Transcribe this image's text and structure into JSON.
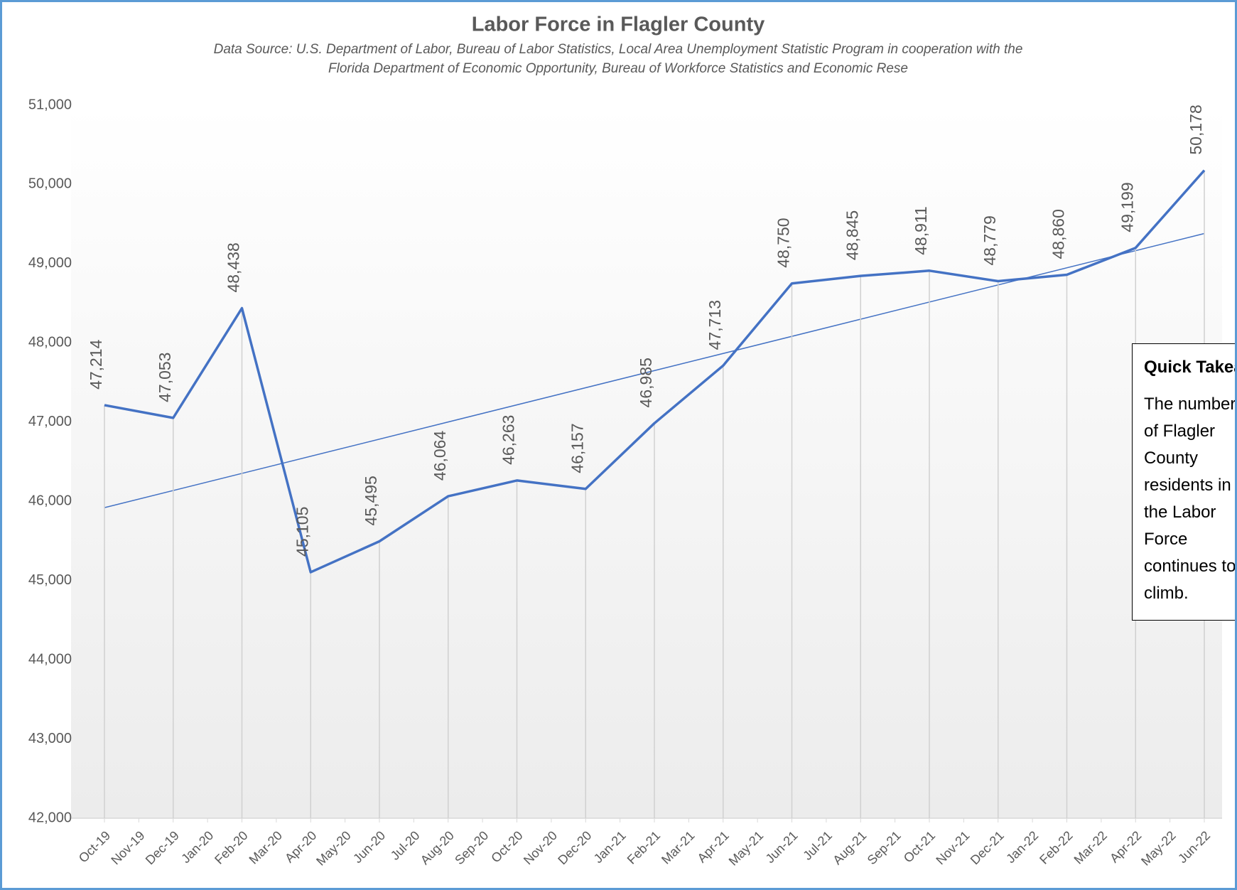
{
  "chart_data": {
    "type": "line",
    "title": "Labor Force in Flagler County",
    "subtitle": [
      "Data Source:  U.S. Department of Labor, Bureau of Labor Statistics, Local Area Unemployment Statistic Program in cooperation with the",
      "Florida Department of Economic Opportunity, Bureau of Workforce Statistics and Economic Rese"
    ],
    "categories": [
      "Oct-19",
      "Nov-19",
      "Dec-19",
      "Jan-20",
      "Feb-20",
      "Mar-20",
      "Apr-20",
      "May-20",
      "Jun-20",
      "Jul-20",
      "Aug-20",
      "Sep-20",
      "Oct-20",
      "Nov-20",
      "Dec-20",
      "Jan-21",
      "Feb-21",
      "Mar-21",
      "Apr-21",
      "May-21",
      "Jun-21",
      "Jul-21",
      "Aug-21",
      "Sep-21",
      "Oct-21",
      "Nov-21",
      "Dec-21",
      "Jan-22",
      "Feb-22",
      "Mar-22",
      "Apr-22",
      "May-22",
      "Jun-22"
    ],
    "values": [
      47214,
      null,
      47053,
      null,
      48438,
      null,
      45105,
      null,
      45495,
      null,
      46064,
      null,
      46263,
      null,
      46157,
      null,
      46985,
      null,
      47713,
      null,
      48750,
      null,
      48845,
      null,
      48911,
      null,
      48779,
      null,
      48860,
      null,
      49199,
      null,
      50178
    ],
    "value_labels": [
      "47,214",
      null,
      "47,053",
      null,
      "48,438",
      null,
      "45,105",
      null,
      "45,495",
      null,
      "46,064",
      null,
      "46,263",
      null,
      "46,157",
      null,
      "46,985",
      null,
      "47,713",
      null,
      "48,750",
      null,
      "48,845",
      null,
      "48,911",
      null,
      "48,779",
      null,
      "48,860",
      null,
      "49,199",
      null,
      "50,178"
    ],
    "color": "#4472c4",
    "span_gaps": true,
    "drop_lines": true,
    "trendline": [
      45920,
      49380
    ],
    "ylim": [
      42000,
      51000
    ],
    "yticks": [
      {
        "value": 42000,
        "label": "42,000"
      },
      {
        "value": 43000,
        "label": "43,000"
      },
      {
        "value": 44000,
        "label": "44,000"
      },
      {
        "value": 45000,
        "label": "45,000"
      },
      {
        "value": 46000,
        "label": "46,000"
      },
      {
        "value": 47000,
        "label": "47,000"
      },
      {
        "value": 48000,
        "label": "48,000"
      },
      {
        "value": 49000,
        "label": "49,000"
      },
      {
        "value": 50000,
        "label": "50,000"
      },
      {
        "value": 51000,
        "label": "51,000"
      }
    ]
  },
  "quick_take": {
    "title": "Quick Takeaway",
    "body": "The number of Flagler County residents in the Labor Force continues to climb."
  }
}
